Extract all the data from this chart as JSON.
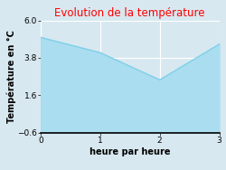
{
  "title": "Evolution de la température",
  "xlabel": "heure par heure",
  "ylabel": "Température en °C",
  "x": [
    0,
    1,
    2,
    3
  ],
  "y": [
    5.0,
    4.1,
    2.5,
    4.6
  ],
  "ylim": [
    -0.6,
    6.0
  ],
  "xlim": [
    0,
    3
  ],
  "yticks": [
    -0.6,
    1.6,
    3.8,
    6.0
  ],
  "xticks": [
    0,
    1,
    2,
    3
  ],
  "line_color": "#7ecfea",
  "fill_color": "#aaddf0",
  "background_color": "#d8e8f0",
  "plot_bg_color": "#d8e8f0",
  "title_color": "#ff0000",
  "title_fontsize": 8.5,
  "label_fontsize": 7.0,
  "tick_fontsize": 6.5,
  "grid_color": "#ffffff",
  "spine_color": "#000000"
}
